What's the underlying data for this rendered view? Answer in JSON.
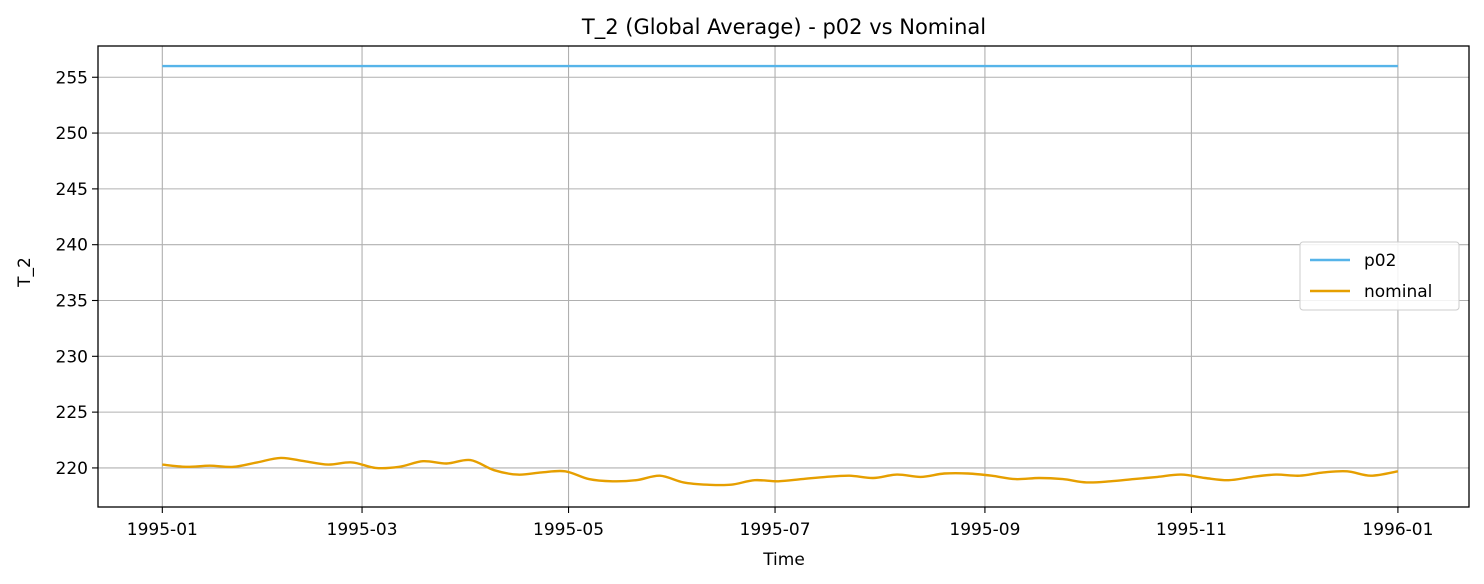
{
  "chart_data": {
    "type": "line",
    "title": "T_2 (Global Average) - p02 vs Nominal",
    "xlabel": "Time",
    "ylabel": "T_2",
    "grid": true,
    "legend_position": "center-right",
    "x_range": [
      "1994-12-13",
      "1996-01-22"
    ],
    "ylim": [
      216.5,
      257.8
    ],
    "x_ticks": [
      "1995-01",
      "1995-03",
      "1995-05",
      "1995-07",
      "1995-09",
      "1995-11",
      "1996-01"
    ],
    "y_ticks": [
      220,
      225,
      230,
      235,
      240,
      245,
      250,
      255
    ],
    "series": [
      {
        "name": "p02",
        "color": "#56B4E9",
        "x": [
          "1995-01-01",
          "1996-01-01"
        ],
        "y": [
          256.0,
          256.0
        ]
      },
      {
        "name": "nominal",
        "color": "#E69F00",
        "x": [
          "1995-01-01",
          "1995-01-08",
          "1995-01-15",
          "1995-01-22",
          "1995-01-29",
          "1995-02-05",
          "1995-02-12",
          "1995-02-19",
          "1995-02-26",
          "1995-03-05",
          "1995-03-12",
          "1995-03-19",
          "1995-03-26",
          "1995-04-02",
          "1995-04-09",
          "1995-04-16",
          "1995-04-23",
          "1995-04-30",
          "1995-05-07",
          "1995-05-14",
          "1995-05-21",
          "1995-05-28",
          "1995-06-04",
          "1995-06-11",
          "1995-06-18",
          "1995-06-25",
          "1995-07-02",
          "1995-07-09",
          "1995-07-16",
          "1995-07-23",
          "1995-07-30",
          "1995-08-06",
          "1995-08-13",
          "1995-08-20",
          "1995-08-27",
          "1995-09-03",
          "1995-09-10",
          "1995-09-17",
          "1995-09-24",
          "1995-10-01",
          "1995-10-08",
          "1995-10-15",
          "1995-10-22",
          "1995-10-29",
          "1995-11-05",
          "1995-11-12",
          "1995-11-19",
          "1995-11-26",
          "1995-12-03",
          "1995-12-10",
          "1995-12-17",
          "1995-12-24",
          "1996-01-01"
        ],
        "y": [
          220.3,
          220.1,
          220.2,
          220.1,
          220.5,
          220.9,
          220.6,
          220.3,
          220.5,
          220.0,
          220.1,
          220.6,
          220.4,
          220.7,
          219.8,
          219.4,
          219.6,
          219.7,
          219.0,
          218.8,
          218.9,
          219.3,
          218.7,
          218.5,
          218.5,
          218.9,
          218.8,
          219.0,
          219.2,
          219.3,
          219.1,
          219.4,
          219.2,
          219.5,
          219.5,
          219.3,
          219.0,
          219.1,
          219.0,
          218.7,
          218.8,
          219.0,
          219.2,
          219.4,
          219.1,
          218.9,
          219.2,
          219.4,
          219.3,
          219.6,
          219.7,
          219.3,
          219.7
        ]
      }
    ]
  }
}
